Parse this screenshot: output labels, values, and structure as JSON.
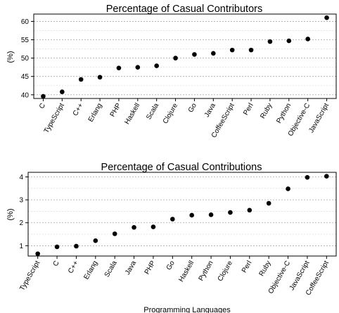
{
  "chart_data": [
    {
      "type": "scatter",
      "title": "Percentage of Casual Contributors",
      "xlabel": "",
      "ylabel": "(%)",
      "categories": [
        "C",
        "TypeScript",
        "C++",
        "Erlang",
        "PHP",
        "Haskell",
        "Scala",
        "Clojure",
        "Go",
        "Java",
        "CoffeeScript",
        "Perl",
        "Ruby",
        "Python",
        "Objective-C",
        "JavaScript"
      ],
      "values": [
        39.6,
        40.8,
        44.2,
        44.8,
        47.3,
        47.5,
        47.9,
        50.0,
        51.0,
        51.3,
        52.2,
        52.2,
        54.5,
        54.7,
        55.2,
        61.0
      ],
      "ylim": [
        39,
        62
      ],
      "yticks": [
        40,
        45,
        50,
        55,
        60
      ],
      "grid": true,
      "legend": "none"
    },
    {
      "type": "scatter",
      "title": "Percentage of Casual Contributions",
      "xlabel": "Programming Languages",
      "ylabel": "(%)",
      "categories": [
        "TypeScript",
        "C",
        "C++",
        "Erlang",
        "Scala",
        "Java",
        "PHP",
        "Go",
        "Haskell",
        "Python",
        "Clojure",
        "Perl",
        "Ruby",
        "Objective-C",
        "JavaScript",
        "CoffeeScript"
      ],
      "values": [
        0.65,
        0.95,
        0.98,
        1.22,
        1.52,
        1.8,
        1.82,
        2.16,
        2.33,
        2.35,
        2.45,
        2.55,
        2.85,
        3.48,
        3.98,
        4.03
      ],
      "ylim": [
        0.55,
        4.2
      ],
      "yticks": [
        1,
        2,
        3,
        4
      ],
      "grid": true,
      "legend": "none"
    }
  ],
  "colors": {
    "point": "#000000",
    "grid_major": "#a6a6a6",
    "grid_minor": "#e0e0e0",
    "axis": "#000000"
  }
}
